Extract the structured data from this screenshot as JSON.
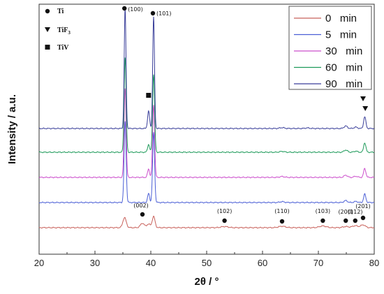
{
  "chart_data": {
    "type": "line",
    "xlabel": "2θ / °",
    "ylabel": "Intensity / a.u.",
    "xlim": [
      20,
      80
    ],
    "xticks": [
      "20",
      "30",
      "40",
      "50",
      "60",
      "70",
      "80"
    ],
    "yticks_shown": false,
    "legend": {
      "placement": "top-right"
    },
    "series": [
      {
        "name": "0   min",
        "color": "#c8605a",
        "peaks": [
          {
            "x": 35.3,
            "height": 0.36,
            "width": 0.3
          },
          {
            "x": 38.5,
            "height": 0.16,
            "width": 0.35
          },
          {
            "x": 39.6,
            "height": 0.13,
            "width": 0.3
          },
          {
            "x": 40.5,
            "height": 0.4,
            "width": 0.25
          },
          {
            "x": 53.2,
            "height": 0.04,
            "width": 0.6
          },
          {
            "x": 63.5,
            "height": 0.05,
            "width": 0.6
          },
          {
            "x": 70.8,
            "height": 0.06,
            "width": 0.6
          },
          {
            "x": 74.9,
            "height": 0.04,
            "width": 0.5
          },
          {
            "x": 76.6,
            "height": 0.07,
            "width": 0.5
          },
          {
            "x": 78.0,
            "height": 0.1,
            "width": 0.4
          }
        ]
      },
      {
        "name": "5   min",
        "color": "#4b5fd6",
        "peaks": [
          {
            "x": 35.4,
            "height": 2.9,
            "width": 0.18
          },
          {
            "x": 39.6,
            "height": 0.32,
            "width": 0.18
          },
          {
            "x": 40.5,
            "height": 2.5,
            "width": 0.18
          },
          {
            "x": 63.5,
            "height": 0.03,
            "width": 0.4
          },
          {
            "x": 74.9,
            "height": 0.07,
            "width": 0.3
          },
          {
            "x": 76.7,
            "height": 0.04,
            "width": 0.3
          },
          {
            "x": 78.3,
            "height": 0.3,
            "width": 0.2
          }
        ]
      },
      {
        "name": "30   min",
        "color": "#cc4fcc",
        "peaks": [
          {
            "x": 35.4,
            "height": 3.2,
            "width": 0.18
          },
          {
            "x": 39.6,
            "height": 0.3,
            "width": 0.18
          },
          {
            "x": 40.5,
            "height": 2.6,
            "width": 0.18
          },
          {
            "x": 63.5,
            "height": 0.03,
            "width": 0.4
          },
          {
            "x": 74.9,
            "height": 0.08,
            "width": 0.3
          },
          {
            "x": 76.7,
            "height": 0.04,
            "width": 0.3
          },
          {
            "x": 78.3,
            "height": 0.32,
            "width": 0.2
          }
        ]
      },
      {
        "name": "60   min",
        "color": "#1e9a5a",
        "peaks": [
          {
            "x": 35.4,
            "height": 3.4,
            "width": 0.18
          },
          {
            "x": 39.6,
            "height": 0.28,
            "width": 0.18
          },
          {
            "x": 40.5,
            "height": 2.8,
            "width": 0.18
          },
          {
            "x": 63.5,
            "height": 0.03,
            "width": 0.4
          },
          {
            "x": 74.9,
            "height": 0.08,
            "width": 0.3
          },
          {
            "x": 76.7,
            "height": 0.04,
            "width": 0.3
          },
          {
            "x": 78.3,
            "height": 0.34,
            "width": 0.2
          }
        ]
      },
      {
        "name": "90   min",
        "color": "#3a3f9a",
        "peaks": [
          {
            "x": 35.4,
            "height": 4.3,
            "width": 0.16
          },
          {
            "x": 39.6,
            "height": 0.62,
            "width": 0.18
          },
          {
            "x": 40.5,
            "height": 4.0,
            "width": 0.16
          },
          {
            "x": 63.5,
            "height": 0.03,
            "width": 0.4
          },
          {
            "x": 68.0,
            "height": 0.02,
            "width": 0.4
          },
          {
            "x": 74.9,
            "height": 0.09,
            "width": 0.3
          },
          {
            "x": 76.7,
            "height": 0.05,
            "width": 0.3
          },
          {
            "x": 78.3,
            "height": 0.42,
            "width": 0.2
          }
        ]
      }
    ],
    "phase_legend": [
      {
        "marker": "circle",
        "label": "Ti"
      },
      {
        "marker": "triangle-down",
        "label": "TiF",
        "sub": "3"
      },
      {
        "marker": "square",
        "label": "TiV"
      }
    ],
    "annotations": [
      {
        "text": "(100)",
        "x": 35.4,
        "marker": "circle"
      },
      {
        "text": "(101)",
        "x": 40.5,
        "marker": "circle"
      },
      {
        "text": "(002)",
        "x": 38.5,
        "marker": "circle"
      },
      {
        "text": "(102)",
        "x": 53.2,
        "marker": "circle"
      },
      {
        "text": "(110)",
        "x": 63.5,
        "marker": "circle"
      },
      {
        "text": "(103)",
        "x": 70.8,
        "marker": "circle"
      },
      {
        "text": "(200)",
        "x": 74.9,
        "marker": "circle"
      },
      {
        "text": "(112)",
        "x": 76.6,
        "marker": "circle"
      },
      {
        "text": "(201)",
        "x": 78.0,
        "marker": "circle"
      }
    ],
    "extra_markers": [
      {
        "marker": "square",
        "x": 39.6,
        "phase": "TiV"
      },
      {
        "marker": "triangle-down",
        "x": 78.0,
        "phase": "TiF3"
      },
      {
        "marker": "triangle-down",
        "x": 78.4,
        "phase": "TiF3"
      }
    ]
  }
}
